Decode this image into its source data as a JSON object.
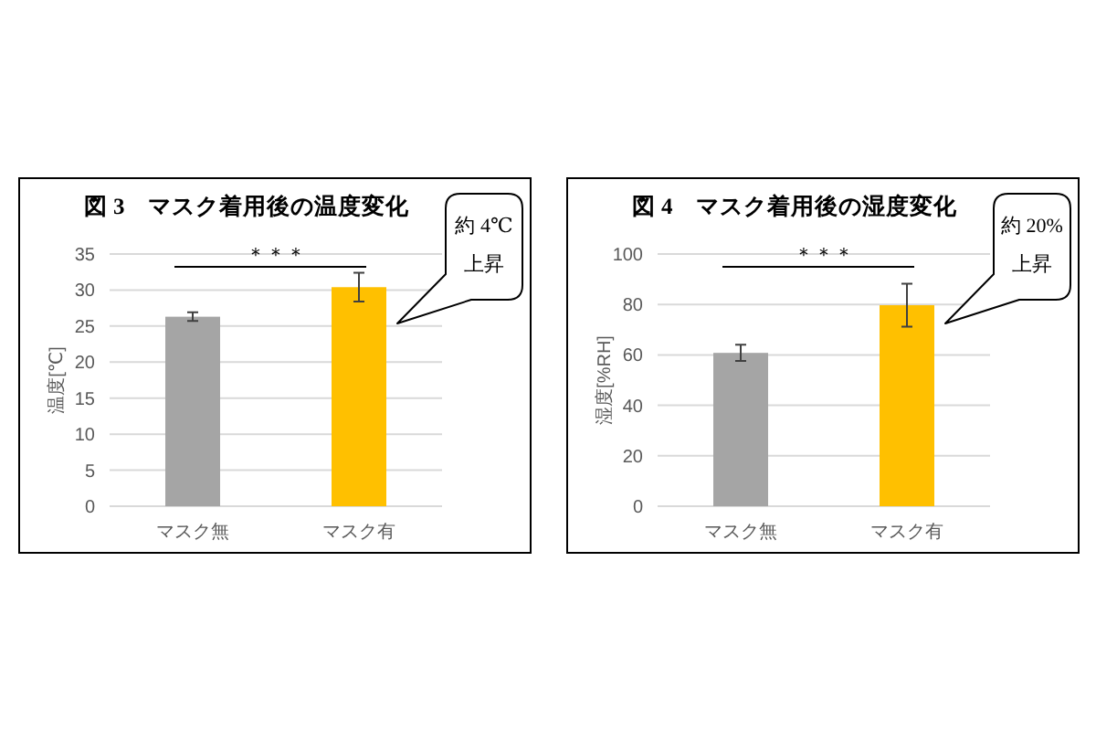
{
  "chart_data": [
    {
      "type": "bar",
      "title": "図 3　マスク着用後の温度変化",
      "ylabel": "温度[℃]",
      "categories": [
        "マスク無",
        "マスク有"
      ],
      "values": [
        26.3,
        30.4
      ],
      "colors": [
        "#a5a5a5",
        "#ffc000"
      ],
      "errors": [
        0.6,
        2.0
      ],
      "ylim": [
        0,
        35
      ],
      "yticks": [
        0,
        5,
        10,
        15,
        20,
        25,
        30,
        35
      ],
      "grid": "y",
      "annotations": [
        "＊＊＊",
        "約 4℃\n上昇"
      ]
    },
    {
      "type": "bar",
      "title": "図 4　マスク着用後の湿度変化",
      "ylabel": "湿度[%RH]",
      "categories": [
        "マスク無",
        "マスク有"
      ],
      "values": [
        60.8,
        79.7
      ],
      "colors": [
        "#a5a5a5",
        "#ffc000"
      ],
      "errors": [
        3.2,
        8.5
      ],
      "ylim": [
        0,
        100
      ],
      "yticks": [
        0,
        20,
        40,
        60,
        80,
        100
      ],
      "grid": "y",
      "annotations": [
        "＊＊＊",
        "約 20%\n上昇"
      ]
    }
  ]
}
